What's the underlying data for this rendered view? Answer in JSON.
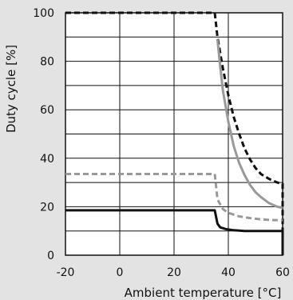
{
  "chart_data": {
    "type": "line",
    "xlabel": "Ambient temperature [°C]",
    "ylabel": "Duty cycle [%]",
    "xlim": [
      -20,
      60
    ],
    "ylim": [
      0,
      100
    ],
    "grid": true,
    "x_ticks": [
      -20,
      0,
      20,
      40,
      60
    ],
    "y_ticks": [
      0,
      20,
      40,
      60,
      80,
      100
    ],
    "x_tick_labels": [
      "-20",
      "0",
      "20",
      "40",
      "60"
    ],
    "y_tick_labels": [
      "0",
      "20",
      "40",
      "60",
      "80",
      "100"
    ],
    "series": [
      {
        "color": "#111111",
        "style": "dashed",
        "points": [
          [
            -20,
            100
          ],
          [
            35,
            100
          ],
          [
            35,
            100
          ],
          [
            36,
            90
          ],
          [
            38,
            77
          ],
          [
            40,
            66
          ],
          [
            42,
            57
          ],
          [
            44,
            50
          ],
          [
            46,
            44
          ],
          [
            48,
            39.5
          ],
          [
            50,
            36
          ],
          [
            52,
            33.5
          ],
          [
            55,
            31.5
          ],
          [
            58,
            30
          ],
          [
            59.5,
            29.5
          ],
          [
            60,
            29.5
          ],
          [
            60,
            0
          ]
        ]
      },
      {
        "color": "#999999",
        "style": "solid",
        "points": [
          [
            36,
            89
          ],
          [
            37,
            78
          ],
          [
            38,
            68
          ],
          [
            40,
            55
          ],
          [
            42,
            45
          ],
          [
            44,
            38
          ],
          [
            46,
            33
          ],
          [
            48,
            29
          ],
          [
            50,
            26
          ],
          [
            52,
            24
          ],
          [
            55,
            21.5
          ],
          [
            58,
            20
          ],
          [
            60,
            19.5
          ]
        ]
      },
      {
        "color": "#999999",
        "style": "dashed",
        "points": [
          [
            -20,
            33.5
          ],
          [
            35,
            33.5
          ],
          [
            35,
            33.5
          ],
          [
            36,
            23
          ],
          [
            38,
            19
          ],
          [
            40,
            17.5
          ],
          [
            44,
            16
          ],
          [
            48,
            15.3
          ],
          [
            52,
            14.8
          ],
          [
            56,
            14.5
          ],
          [
            60,
            14.5
          ]
        ]
      },
      {
        "color": "#111111",
        "style": "solid",
        "points": [
          [
            -20,
            18.5
          ],
          [
            35,
            18.5
          ],
          [
            35,
            18.5
          ],
          [
            36,
            13
          ],
          [
            37,
            11.5
          ],
          [
            39,
            10.8
          ],
          [
            42,
            10.3
          ],
          [
            46,
            10
          ],
          [
            52,
            10
          ],
          [
            60,
            10
          ],
          [
            60,
            0
          ]
        ]
      }
    ]
  }
}
